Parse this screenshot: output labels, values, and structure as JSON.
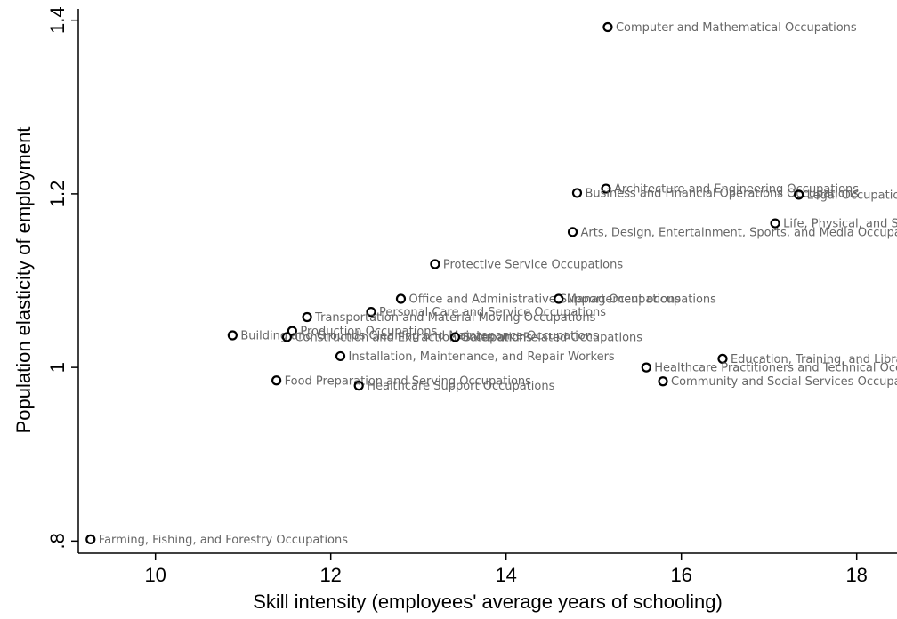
{
  "chart_data": {
    "type": "scatter",
    "x_label": "Skill intensity (employees' average years of schooling)",
    "y_label": "Population elasticity of employment",
    "labels": [
      "Computer and Mathematical Occupations",
      "Architecture and Engineering Occupations",
      "Business and Financial Operations Occupations",
      "Legal Occupations",
      "Life, Physical, and Social Science Occupations",
      "Arts, Design, Entertainment, Sports, and Media Occupations",
      "Protective Service Occupations",
      "Office and Administrative Support Occupations",
      "Management occupations",
      "Personal Care and Service Occupations",
      "Transportation and Material Moving Occupations",
      "Production Occupations",
      "Building and Grounds Cleaning and Maintenance Occupations",
      "Construction and Extraction Occupations",
      "Sales and Related Occupations",
      "Installation, Maintenance, and Repair Workers",
      "Education, Training, and Library Occupations",
      "Healthcare Practitioners and Technical Occupations",
      "Community and Social Services Occupations",
      "Food Preparation and Serving Occupations",
      "Healthcare Support Occupations",
      "Farming, Fishing, and Forestry Occupations"
    ],
    "x": [
      15.16,
      15.14,
      14.81,
      17.34,
      17.07,
      14.76,
      13.19,
      12.8,
      14.6,
      12.46,
      11.73,
      11.56,
      10.88,
      11.5,
      13.42,
      12.11,
      16.47,
      15.6,
      15.79,
      11.38,
      12.32,
      9.26
    ],
    "values": [
      1.392,
      1.206,
      1.201,
      1.199,
      1.166,
      1.156,
      1.119,
      1.079,
      1.079,
      1.064,
      1.058,
      1.042,
      1.037,
      1.035,
      1.035,
      1.013,
      1.01,
      1.0,
      0.984,
      0.985,
      0.979,
      0.802
    ],
    "xlim": [
      9.12,
      18.46
    ],
    "xticks": [
      10,
      12,
      14,
      16,
      18
    ],
    "ylim": [
      0.786,
      1.413
    ],
    "yticks": [
      {
        "value": 0.8,
        "label": ".8"
      },
      1,
      1.2,
      1.4
    ],
    "color": "#000000",
    "label_color": "#666666"
  }
}
